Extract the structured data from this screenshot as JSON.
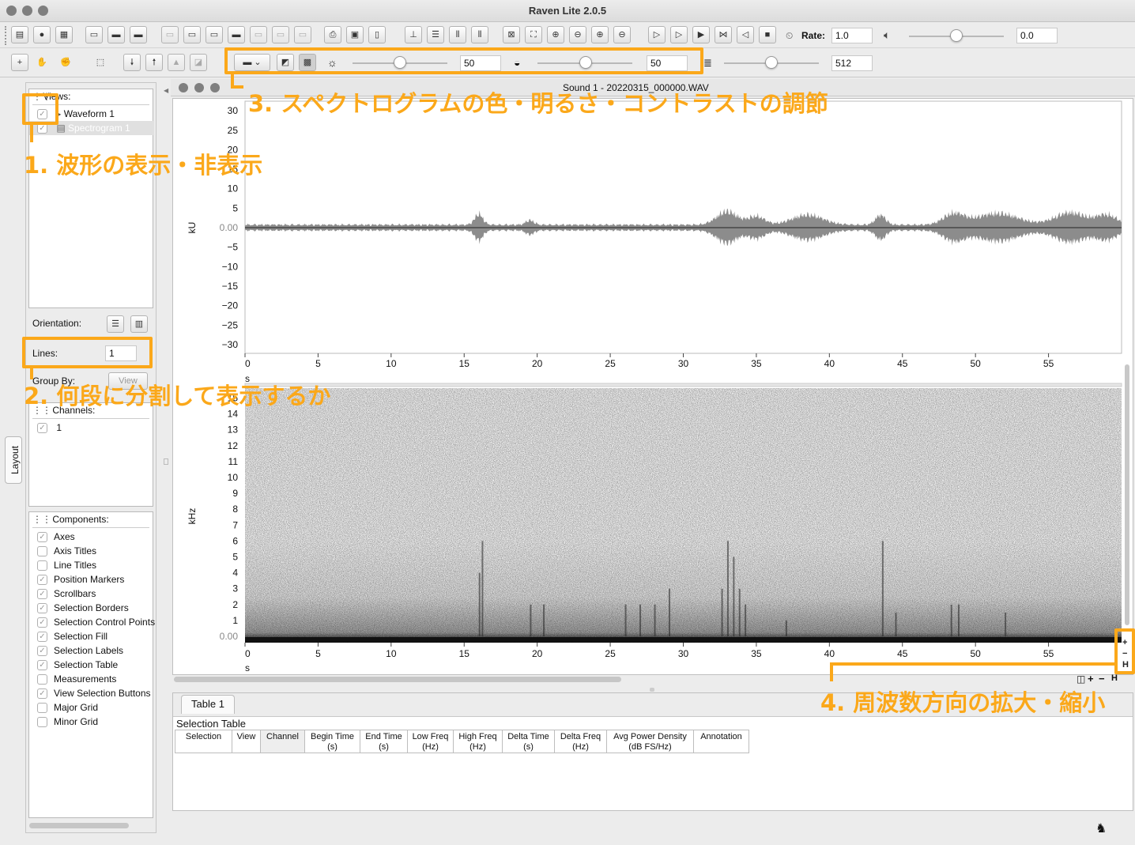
{
  "app": {
    "title": "Raven Lite 2.0.5"
  },
  "toolbar": {
    "rate_label": "Rate:",
    "rate_value": "1.0",
    "volume_value": "0.0",
    "brightness_value": "50",
    "contrast_value": "50",
    "size_value": "512"
  },
  "sound_window": {
    "title": "Sound 1 - 20220315_000000.WAV"
  },
  "layout_panel": {
    "tab_label": "Layout",
    "views_label": "Views:",
    "views": [
      {
        "label": "Waveform 1",
        "checked": true
      },
      {
        "label": "Spectrogram 1",
        "checked": true
      }
    ],
    "orientation_label": "Orientation:",
    "lines_label": "Lines:",
    "lines_value": "1",
    "group_by_label": "Group By:",
    "group_by_value": "View",
    "channels_label": "Channels:",
    "channels": [
      {
        "label": "1",
        "checked": true
      }
    ],
    "components_label": "Components:",
    "components": [
      {
        "label": "Axes",
        "checked": true
      },
      {
        "label": "Axis Titles",
        "checked": false
      },
      {
        "label": "Line Titles",
        "checked": false
      },
      {
        "label": "Position Markers",
        "checked": true
      },
      {
        "label": "Scrollbars",
        "checked": true
      },
      {
        "label": "Selection Borders",
        "checked": true
      },
      {
        "label": "Selection Control Points",
        "checked": true
      },
      {
        "label": "Selection Fill",
        "checked": true
      },
      {
        "label": "Selection Labels",
        "checked": true
      },
      {
        "label": "Selection Table",
        "checked": true
      },
      {
        "label": "Measurements",
        "checked": false
      },
      {
        "label": "View Selection Buttons",
        "checked": true
      },
      {
        "label": "Major Grid",
        "checked": false
      },
      {
        "label": "Minor Grid",
        "checked": false
      }
    ]
  },
  "waveform": {
    "y_unit": "kU",
    "y_ticks": [
      "30",
      "25",
      "20",
      "15",
      "10",
      "5",
      "0.00",
      "−5",
      "−10",
      "−15",
      "−20",
      "−25",
      "−30"
    ],
    "x_unit": "s",
    "x_ticks": [
      "0",
      "5",
      "10",
      "15",
      "20",
      "25",
      "30",
      "35",
      "40",
      "45",
      "50",
      "55"
    ]
  },
  "spectrogram": {
    "y_unit": "kHz",
    "y_ticks": [
      "15",
      "14",
      "13",
      "12",
      "11",
      "10",
      "9",
      "8",
      "7",
      "6",
      "5",
      "4",
      "3",
      "2",
      "1",
      "0.00"
    ],
    "x_unit": "s",
    "x_ticks": [
      "0",
      "5",
      "10",
      "15",
      "20",
      "25",
      "30",
      "35",
      "40",
      "45",
      "50",
      "55"
    ]
  },
  "table": {
    "tab_label": "Table 1",
    "title": "Selection Table",
    "columns": [
      {
        "l1": "Selection",
        "l2": ""
      },
      {
        "l1": "View",
        "l2": ""
      },
      {
        "l1": "Channel",
        "l2": ""
      },
      {
        "l1": "Begin Time",
        "l2": "(s)"
      },
      {
        "l1": "End Time",
        "l2": "(s)"
      },
      {
        "l1": "Low Freq",
        "l2": "(Hz)"
      },
      {
        "l1": "High Freq",
        "l2": "(Hz)"
      },
      {
        "l1": "Delta Time",
        "l2": "(s)"
      },
      {
        "l1": "Delta Freq",
        "l2": "(Hz)"
      },
      {
        "l1": "Avg Power Density",
        "l2": "(dB FS/Hz)"
      },
      {
        "l1": "Annotation",
        "l2": ""
      }
    ]
  },
  "annotations": {
    "a1": "1. 波形の表示・非表示",
    "a2": "2. 何段に分割して表示するか",
    "a3": "3. スペクトログラムの色・明るさ・コントラストの調節",
    "a4": "4. 周波数方向の拡大・縮小"
  },
  "colors": {
    "annotation": "#fba81a",
    "waveform": "#8c8c8c"
  }
}
